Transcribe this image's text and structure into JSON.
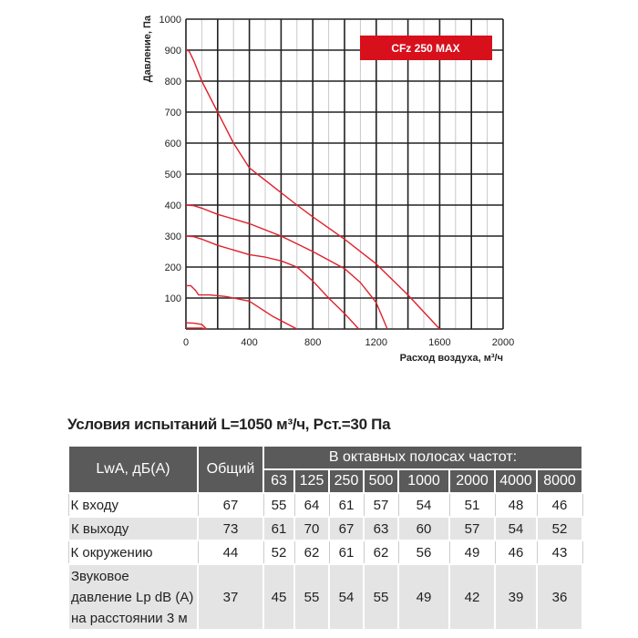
{
  "chart_data": {
    "type": "line",
    "model_label": "CFz 250 MAX",
    "xlabel": "Расход воздуха, м³/ч",
    "ylabel": "Давление, Па",
    "xlim": [
      0,
      2000
    ],
    "ylim": [
      0,
      1000
    ],
    "x_ticks": [
      "0",
      "400",
      "800",
      "1200",
      "1600",
      "2000"
    ],
    "y_ticks": [
      "100",
      "200",
      "300",
      "400",
      "500",
      "600",
      "700",
      "800",
      "900",
      "1000"
    ],
    "grid": true,
    "series_color": "#e0202a",
    "series": [
      {
        "points": [
          [
            0,
            900
          ],
          [
            20,
            897
          ],
          [
            50,
            865
          ],
          [
            100,
            800
          ],
          [
            150,
            750
          ],
          [
            200,
            700
          ],
          [
            300,
            600
          ],
          [
            400,
            520
          ],
          [
            500,
            480
          ],
          [
            600,
            440
          ],
          [
            700,
            400
          ],
          [
            800,
            362
          ],
          [
            1000,
            290
          ],
          [
            1200,
            210
          ],
          [
            1400,
            110
          ],
          [
            1600,
            0
          ]
        ]
      },
      {
        "points": [
          [
            0,
            400
          ],
          [
            50,
            398
          ],
          [
            100,
            390
          ],
          [
            200,
            370
          ],
          [
            400,
            340
          ],
          [
            600,
            300
          ],
          [
            800,
            250
          ],
          [
            1000,
            195
          ],
          [
            1100,
            150
          ],
          [
            1150,
            118
          ],
          [
            1200,
            85
          ],
          [
            1270,
            0
          ]
        ]
      },
      {
        "points": [
          [
            0,
            300
          ],
          [
            50,
            298
          ],
          [
            100,
            290
          ],
          [
            200,
            270
          ],
          [
            400,
            240
          ],
          [
            500,
            232
          ],
          [
            600,
            220
          ],
          [
            700,
            200
          ],
          [
            800,
            155
          ],
          [
            900,
            100
          ],
          [
            1000,
            50
          ],
          [
            1090,
            0
          ]
        ]
      },
      {
        "points": [
          [
            0,
            140
          ],
          [
            30,
            140
          ],
          [
            60,
            125
          ],
          [
            80,
            110
          ],
          [
            150,
            110
          ],
          [
            250,
            105
          ],
          [
            400,
            90
          ],
          [
            550,
            40
          ],
          [
            700,
            0
          ]
        ]
      },
      {
        "points": [
          [
            0,
            20
          ],
          [
            50,
            19
          ],
          [
            100,
            15
          ],
          [
            130,
            0
          ]
        ]
      },
      {
        "points": [
          [
            0,
            3
          ],
          [
            100,
            3
          ],
          [
            130,
            0
          ]
        ]
      }
    ]
  },
  "table": {
    "title": "Условия испытаний L=1050 м³/ч, Рст.=30 Па",
    "head_label": "LwA, дБ(A)",
    "head_total": "Общий",
    "head_bands": "В октавных полосах частот:",
    "bands": [
      "63",
      "125",
      "250",
      "500",
      "1000",
      "2000",
      "4000",
      "8000"
    ],
    "rows": [
      {
        "label": "К входу",
        "total": "67",
        "values": [
          "55",
          "64",
          "61",
          "57",
          "54",
          "51",
          "48",
          "46"
        ]
      },
      {
        "label": "К выходу",
        "total": "73",
        "values": [
          "61",
          "70",
          "67",
          "63",
          "60",
          "57",
          "54",
          "52"
        ]
      },
      {
        "label": "К окружению",
        "total": "44",
        "values": [
          "52",
          "62",
          "61",
          "62",
          "56",
          "49",
          "46",
          "43"
        ]
      },
      {
        "label_lines": [
          "Звуковое",
          "давление Lp dB (A)",
          "на расстоянии 3 м"
        ],
        "total": "37",
        "values": [
          "45",
          "55",
          "54",
          "55",
          "49",
          "42",
          "39",
          "36"
        ]
      }
    ]
  }
}
